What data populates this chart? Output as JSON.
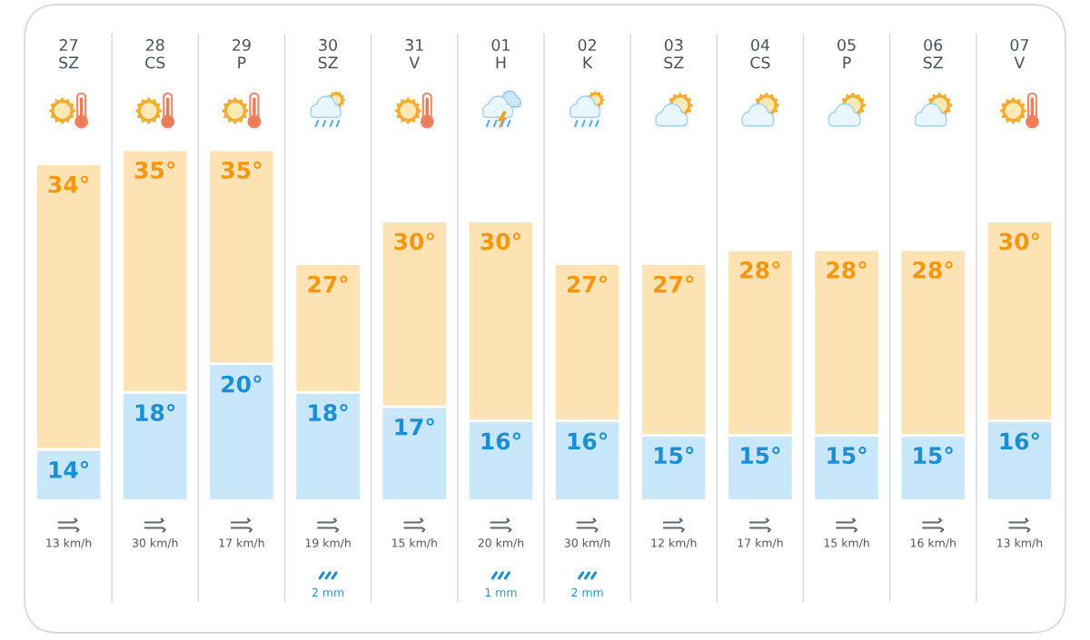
{
  "chart_data": [
    {
      "type": "bar",
      "stacked": true,
      "categories": [
        "27\nSZ",
        "28\nCS",
        "29\nP",
        "30\nSZ",
        "31\nV",
        "01\nH",
        "02\nK",
        "03\nSZ",
        "04\nCS",
        "05\nP",
        "06\nSZ",
        "07\nV"
      ],
      "tick_labels": "x",
      "series": [
        {
          "color": "#c9e7fb",
          "values": [
            14,
            18,
            20,
            18,
            17,
            16,
            16,
            15,
            15,
            15,
            15,
            16
          ],
          "value_labels": [
            "14°",
            "18°",
            "20°",
            "18°",
            "17°",
            "16°",
            "16°",
            "15°",
            "15°",
            "15°",
            "15°",
            "16°"
          ]
        },
        {
          "color": "#fde3b3",
          "values": [
            20,
            17,
            15,
            9,
            13,
            14,
            11,
            12,
            13,
            13,
            13,
            14
          ]
        }
      ],
      "annotations": [
        {
          "text": "34°",
          "x": "27\nSZ",
          "y": 34
        },
        {
          "text": "35°",
          "x": "28\nCS",
          "y": 35
        },
        {
          "text": "35°",
          "x": "29\nP",
          "y": 35
        },
        {
          "text": "27°",
          "x": "30\nSZ",
          "y": 27
        },
        {
          "text": "30°",
          "x": "31\nV",
          "y": 30
        },
        {
          "text": "30°",
          "x": "01\nH",
          "y": 30
        },
        {
          "text": "27°",
          "x": "02\nK",
          "y": 27
        },
        {
          "text": "27°",
          "x": "03\nSZ",
          "y": 27
        },
        {
          "text": "28°",
          "x": "04\nCS",
          "y": 28
        },
        {
          "text": "28°",
          "x": "05\nP",
          "y": 28
        },
        {
          "text": "28°",
          "x": "06\nSZ",
          "y": 28
        },
        {
          "text": "30°",
          "x": "07\nV",
          "y": 30
        }
      ]
    },
    {
      "type": "other",
      "categories": [
        null,
        null,
        null,
        null,
        null,
        null,
        null,
        null,
        null,
        null,
        null,
        null
      ],
      "series": [
        {
          "color": "#4e5861",
          "values": [
            13,
            30,
            17,
            19,
            15,
            20,
            30,
            12,
            17,
            15,
            16,
            13
          ],
          "value_labels": [
            "13 km/h",
            "30 km/h",
            "17 km/h",
            "19 km/h",
            "15 km/h",
            "20 km/h",
            "30 km/h",
            "12 km/h",
            "17 km/h",
            "15 km/h",
            "16 km/h",
            "13 km/h"
          ]
        }
      ]
    },
    {
      "type": "other",
      "categories": [
        null,
        null,
        null,
        null,
        null,
        null,
        null,
        null,
        null,
        null,
        null,
        null
      ],
      "series": [
        {
          "color": "#2a90cb",
          "values": [
            null,
            null,
            null,
            2,
            null,
            1,
            2,
            null,
            null,
            null,
            null,
            null
          ],
          "value_labels": [
            null,
            null,
            null,
            "2 mm",
            null,
            "1 mm",
            "2 mm",
            null,
            null,
            null,
            null,
            null
          ]
        }
      ]
    }
  ]
}
